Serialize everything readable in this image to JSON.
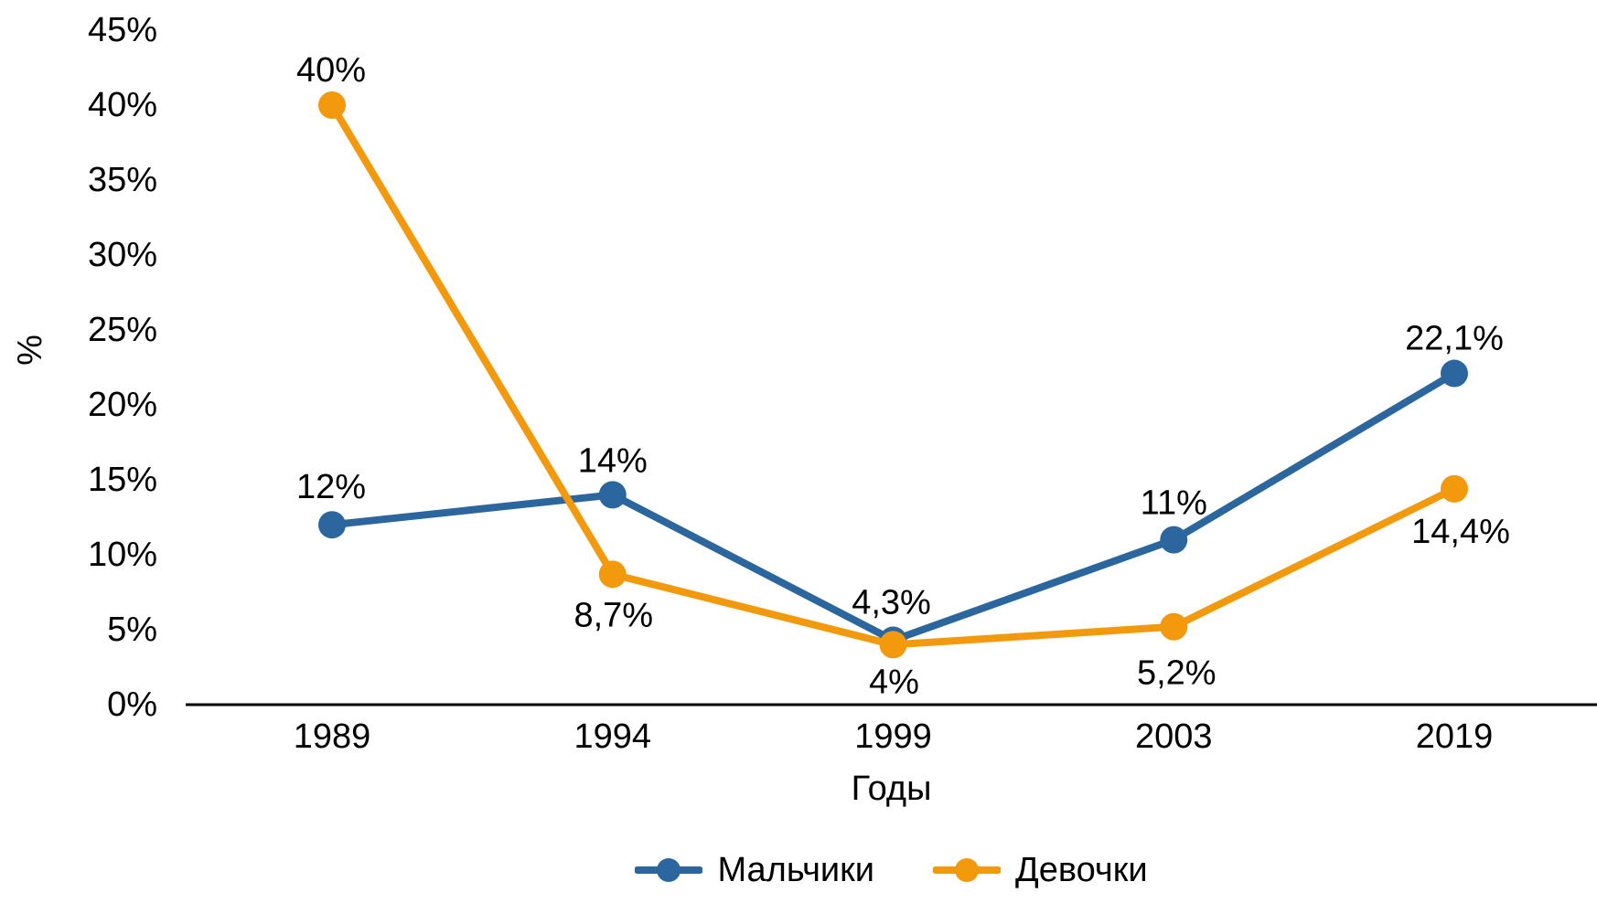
{
  "chart_data": {
    "type": "line",
    "title": "",
    "xlabel": "Годы",
    "ylabel": "%",
    "categories": [
      "1989",
      "1994",
      "1999",
      "2003",
      "2019"
    ],
    "y_axis": {
      "min": 0,
      "max": 45,
      "step": 5,
      "tick_labels": [
        "0%",
        "5%",
        "10%",
        "15%",
        "20%",
        "25%",
        "30%",
        "35%",
        "40%",
        "45%"
      ]
    },
    "grid": false,
    "legend_position": "bottom",
    "axis_color": "#000000",
    "series": [
      {
        "id": "boys",
        "name": "Мальчики",
        "color": "#2C669F",
        "values": [
          12,
          14,
          4.3,
          11,
          22.1
        ],
        "point_labels": [
          "12%",
          "14%",
          "4,3%",
          "11%",
          "22,1%"
        ],
        "label_placements": [
          {
            "dx": -1,
            "dy": -41
          },
          {
            "dx": 0,
            "dy": -37
          },
          {
            "dx": -2,
            "dy": -41
          },
          {
            "dx": 0,
            "dy": -40
          },
          {
            "dx": 0,
            "dy": -38
          }
        ]
      },
      {
        "id": "girls",
        "name": "Девочки",
        "color": "#F2990D",
        "values": [
          40,
          8.7,
          4,
          5.2,
          14.4
        ],
        "point_labels": [
          "40%",
          "8,7%",
          "4%",
          "5,2%",
          "14,4%"
        ],
        "label_placements": [
          {
            "dx": -1,
            "dy": -38
          },
          {
            "dx": 1,
            "dy": 45
          },
          {
            "dx": 1,
            "dy": 41
          },
          {
            "dx": 3,
            "dy": 51
          },
          {
            "dx": 7,
            "dy": 47
          }
        ]
      }
    ]
  }
}
